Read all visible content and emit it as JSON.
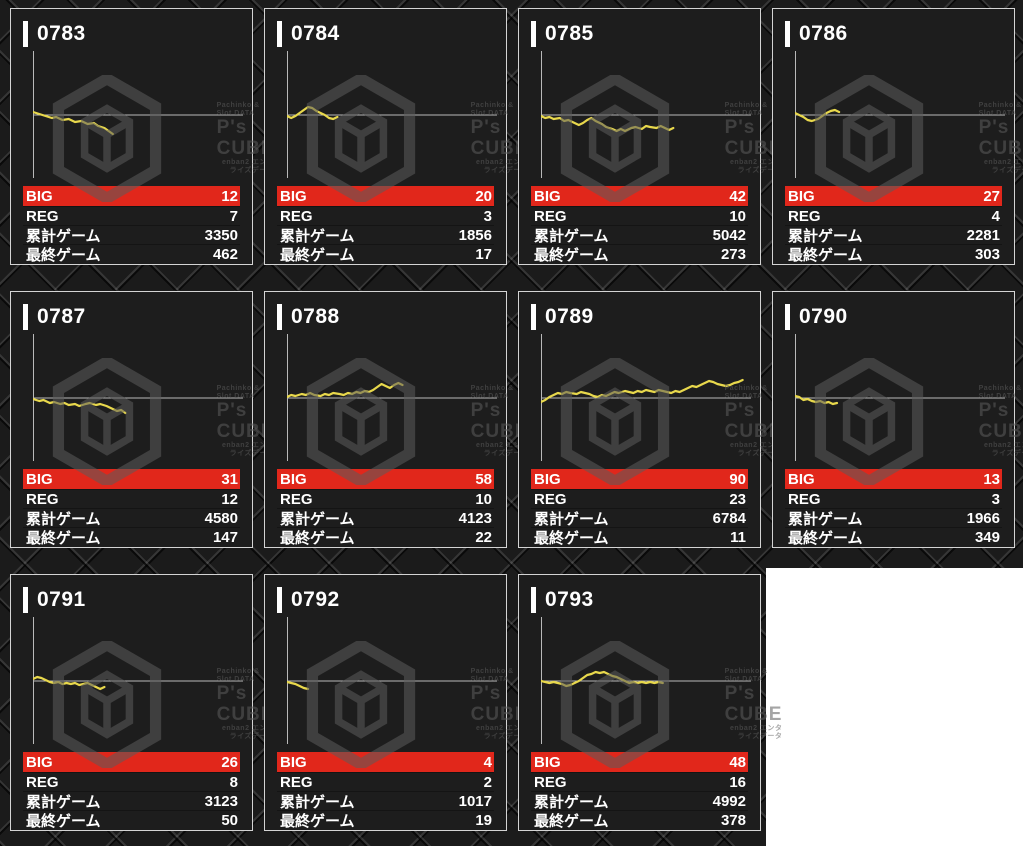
{
  "watermark": {
    "top_text": "Pachinko & Slot DATA",
    "brand": "P's CUBE",
    "bottom_text": "enban2 エンタライズデータ"
  },
  "labels": {
    "big": "BIG",
    "reg": "REG",
    "total_games": "累計ゲーム",
    "last_game": "最終ゲーム"
  },
  "colors": {
    "big_row_bg": "#e1271b",
    "graph_line": "#e8d84c",
    "axis": "#b9b9b9",
    "card_bg": "#1d1d1d",
    "card_border": "#d4d4d4",
    "watermark": "#5c5c5c"
  },
  "machines": [
    {
      "id": "0783",
      "big": 12,
      "reg": 7,
      "total_games": 3350,
      "last_game": 462,
      "graph": [
        [
          0,
          3
        ],
        [
          3,
          1
        ],
        [
          6,
          -1
        ],
        [
          9,
          -3
        ],
        [
          11,
          -2
        ],
        [
          14,
          -5
        ],
        [
          17,
          -4
        ],
        [
          20,
          -7
        ],
        [
          23,
          -6
        ],
        [
          26,
          -9
        ],
        [
          29,
          -8
        ],
        [
          31,
          -11
        ],
        [
          34,
          -13
        ],
        [
          36,
          -16
        ],
        [
          38,
          -19
        ]
      ]
    },
    {
      "id": "0784",
      "big": 20,
      "reg": 3,
      "total_games": 1856,
      "last_game": 17,
      "graph": [
        [
          0,
          -1
        ],
        [
          2,
          -3
        ],
        [
          4,
          -1
        ],
        [
          6,
          2
        ],
        [
          8,
          5
        ],
        [
          10,
          8
        ],
        [
          12,
          7
        ],
        [
          14,
          4
        ],
        [
          16,
          2
        ],
        [
          18,
          0
        ],
        [
          20,
          -3
        ],
        [
          22,
          -4
        ],
        [
          24,
          -2
        ]
      ]
    },
    {
      "id": "0785",
      "big": 42,
      "reg": 10,
      "total_games": 5042,
      "last_game": 273,
      "graph": [
        [
          0,
          -1
        ],
        [
          2,
          -3
        ],
        [
          4,
          -2
        ],
        [
          6,
          -4
        ],
        [
          9,
          -3
        ],
        [
          11,
          -6
        ],
        [
          13,
          -5
        ],
        [
          16,
          -8
        ],
        [
          18,
          -10
        ],
        [
          20,
          -8
        ],
        [
          22,
          -5
        ],
        [
          24,
          -3
        ],
        [
          26,
          -6
        ],
        [
          29,
          -9
        ],
        [
          31,
          -12
        ],
        [
          34,
          -14
        ],
        [
          36,
          -16
        ],
        [
          38,
          -14
        ],
        [
          40,
          -16
        ],
        [
          43,
          -13
        ],
        [
          45,
          -12
        ],
        [
          48,
          -14
        ],
        [
          50,
          -11
        ],
        [
          52,
          -12
        ],
        [
          55,
          -13
        ],
        [
          57,
          -11
        ],
        [
          59,
          -13
        ],
        [
          61,
          -15
        ],
        [
          63,
          -13
        ]
      ]
    },
    {
      "id": "0786",
      "big": 27,
      "reg": 4,
      "total_games": 2281,
      "last_game": 303,
      "graph": [
        [
          0,
          2
        ],
        [
          2,
          0
        ],
        [
          4,
          -2
        ],
        [
          6,
          -5
        ],
        [
          8,
          -6
        ],
        [
          11,
          -4
        ],
        [
          13,
          -1
        ],
        [
          15,
          2
        ],
        [
          17,
          4
        ],
        [
          19,
          5
        ],
        [
          21,
          3
        ]
      ]
    },
    {
      "id": "0787",
      "big": 31,
      "reg": 12,
      "total_games": 4580,
      "last_game": 147,
      "graph": [
        [
          0,
          -1
        ],
        [
          3,
          -3
        ],
        [
          5,
          -2
        ],
        [
          8,
          -5
        ],
        [
          10,
          -4
        ],
        [
          13,
          -6
        ],
        [
          15,
          -5
        ],
        [
          17,
          -7
        ],
        [
          20,
          -6
        ],
        [
          22,
          -8
        ],
        [
          25,
          -6
        ],
        [
          27,
          -5
        ],
        [
          30,
          -7
        ],
        [
          32,
          -6
        ],
        [
          35,
          -8
        ],
        [
          37,
          -10
        ],
        [
          40,
          -13
        ],
        [
          42,
          -12
        ],
        [
          44,
          -15
        ]
      ]
    },
    {
      "id": "0788",
      "big": 58,
      "reg": 10,
      "total_games": 4123,
      "last_game": 22,
      "graph": [
        [
          0,
          1
        ],
        [
          2,
          3
        ],
        [
          4,
          2
        ],
        [
          7,
          4
        ],
        [
          9,
          3
        ],
        [
          11,
          5
        ],
        [
          13,
          3
        ],
        [
          16,
          2
        ],
        [
          18,
          4
        ],
        [
          20,
          3
        ],
        [
          22,
          5
        ],
        [
          25,
          4
        ],
        [
          27,
          3
        ],
        [
          29,
          5
        ],
        [
          31,
          4
        ],
        [
          33,
          6
        ],
        [
          35,
          5
        ],
        [
          37,
          7
        ],
        [
          39,
          6
        ],
        [
          41,
          8
        ],
        [
          43,
          11
        ],
        [
          45,
          14
        ],
        [
          47,
          12
        ],
        [
          49,
          10
        ],
        [
          51,
          13
        ],
        [
          53,
          15
        ],
        [
          55,
          13
        ]
      ]
    },
    {
      "id": "0789",
      "big": 90,
      "reg": 23,
      "total_games": 6784,
      "last_game": 11,
      "graph": [
        [
          0,
          -4
        ],
        [
          2,
          -2
        ],
        [
          4,
          1
        ],
        [
          6,
          3
        ],
        [
          8,
          5
        ],
        [
          10,
          4
        ],
        [
          12,
          6
        ],
        [
          14,
          5
        ],
        [
          17,
          4
        ],
        [
          19,
          6
        ],
        [
          21,
          5
        ],
        [
          23,
          4
        ],
        [
          25,
          2
        ],
        [
          27,
          1
        ],
        [
          29,
          3
        ],
        [
          31,
          2
        ],
        [
          33,
          4
        ],
        [
          35,
          6
        ],
        [
          37,
          5
        ],
        [
          40,
          7
        ],
        [
          42,
          6
        ],
        [
          44,
          5
        ],
        [
          46,
          7
        ],
        [
          48,
          6
        ],
        [
          50,
          8
        ],
        [
          52,
          7
        ],
        [
          54,
          6
        ],
        [
          56,
          8
        ],
        [
          58,
          7
        ],
        [
          60,
          6
        ],
        [
          62,
          5
        ],
        [
          64,
          7
        ],
        [
          66,
          6
        ],
        [
          68,
          8
        ],
        [
          70,
          10
        ],
        [
          72,
          12
        ],
        [
          74,
          11
        ],
        [
          76,
          13
        ],
        [
          78,
          15
        ],
        [
          80,
          17
        ],
        [
          82,
          16
        ],
        [
          84,
          14
        ],
        [
          86,
          13
        ],
        [
          88,
          12
        ],
        [
          90,
          13
        ],
        [
          92,
          15
        ],
        [
          94,
          16
        ],
        [
          96,
          18
        ]
      ]
    },
    {
      "id": "0790",
      "big": 13,
      "reg": 3,
      "total_games": 1966,
      "last_game": 349,
      "graph": [
        [
          0,
          2
        ],
        [
          2,
          1
        ],
        [
          4,
          -2
        ],
        [
          6,
          -1
        ],
        [
          8,
          -3
        ],
        [
          10,
          -4
        ],
        [
          12,
          -3
        ],
        [
          14,
          -5
        ],
        [
          16,
          -4
        ],
        [
          18,
          -6
        ],
        [
          20,
          -5
        ]
      ]
    },
    {
      "id": "0791",
      "big": 26,
      "reg": 8,
      "total_games": 3123,
      "last_game": 50,
      "graph": [
        [
          0,
          2
        ],
        [
          2,
          4
        ],
        [
          4,
          3
        ],
        [
          6,
          1
        ],
        [
          8,
          -1
        ],
        [
          10,
          -2
        ],
        [
          12,
          -1
        ],
        [
          14,
          -3
        ],
        [
          16,
          -2
        ],
        [
          18,
          -3
        ],
        [
          20,
          -2
        ],
        [
          22,
          -4
        ],
        [
          24,
          -3
        ],
        [
          26,
          -2
        ],
        [
          28,
          -4
        ],
        [
          30,
          -6
        ],
        [
          32,
          -8
        ],
        [
          34,
          -6
        ]
      ]
    },
    {
      "id": "0792",
      "big": 4,
      "reg": 2,
      "total_games": 1017,
      "last_game": 19,
      "graph": [
        [
          0,
          -1
        ],
        [
          2,
          -2
        ],
        [
          4,
          -3
        ],
        [
          6,
          -5
        ],
        [
          8,
          -7
        ],
        [
          10,
          -8
        ]
      ]
    },
    {
      "id": "0793",
      "big": 48,
      "reg": 16,
      "total_games": 4992,
      "last_game": 378,
      "graph": [
        [
          0,
          0
        ],
        [
          2,
          -1
        ],
        [
          4,
          -2
        ],
        [
          6,
          -1
        ],
        [
          8,
          -2
        ],
        [
          10,
          -3
        ],
        [
          12,
          -5
        ],
        [
          14,
          -4
        ],
        [
          16,
          -2
        ],
        [
          18,
          0
        ],
        [
          20,
          3
        ],
        [
          22,
          6
        ],
        [
          24,
          7
        ],
        [
          26,
          9
        ],
        [
          28,
          8
        ],
        [
          30,
          9
        ],
        [
          32,
          7
        ],
        [
          34,
          5
        ],
        [
          36,
          4
        ],
        [
          38,
          2
        ],
        [
          40,
          0
        ],
        [
          42,
          -2
        ],
        [
          44,
          -1
        ],
        [
          46,
          -2
        ],
        [
          48,
          -1
        ],
        [
          50,
          -2
        ],
        [
          52,
          -1
        ],
        [
          54,
          -2
        ],
        [
          56,
          -1
        ],
        [
          58,
          -2
        ]
      ]
    }
  ]
}
